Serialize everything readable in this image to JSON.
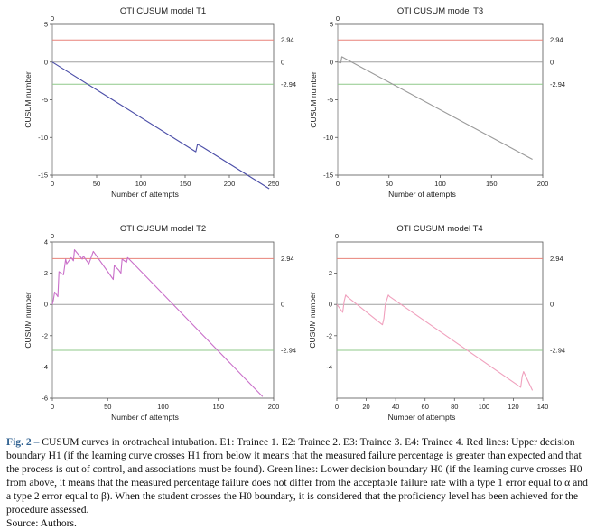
{
  "chart_data": [
    {
      "type": "line",
      "title": "OTI CUSUM model T1",
      "xlabel": "Number of attempts",
      "ylabel": "CUSUM number",
      "xlim": [
        0,
        250
      ],
      "ylim": [
        -15,
        5
      ],
      "xticks": [
        "0",
        "50",
        "100",
        "150",
        "200",
        "250"
      ],
      "yticks": [
        "5",
        "0",
        "-5",
        "-10",
        "-15"
      ],
      "top_label": "0",
      "color": "#4b4ea8",
      "series": [
        {
          "x": [
            0,
            162,
            164,
            170,
            245
          ],
          "y": [
            0,
            -11.9,
            -10.9,
            -11.3,
            -16.8
          ]
        }
      ],
      "reference_lines": [
        {
          "value": 2.94,
          "label": "2.94",
          "color": "#e8827a"
        },
        {
          "value": 0,
          "label": "0",
          "color": "#a0a0a0"
        },
        {
          "value": -2.94,
          "label": "-2.94",
          "color": "#8fc98a"
        }
      ]
    },
    {
      "type": "line",
      "title": "OTI CUSUM model T3",
      "xlabel": "Number of attempts",
      "ylabel": "CUSUM number",
      "xlim": [
        0,
        200
      ],
      "ylim": [
        -15,
        5
      ],
      "xticks": [
        "0",
        "50",
        "100",
        "150",
        "200"
      ],
      "yticks": [
        "5",
        "0",
        "-5",
        "-10",
        "-15"
      ],
      "top_label": "0",
      "color": "#9a9a9a",
      "series": [
        {
          "x": [
            0,
            3,
            4,
            190
          ],
          "y": [
            0,
            -0.1,
            0.7,
            -12.9
          ]
        }
      ],
      "reference_lines": [
        {
          "value": 2.94,
          "label": "2.94",
          "color": "#e8827a"
        },
        {
          "value": 0,
          "label": "0",
          "color": "#a0a0a0"
        },
        {
          "value": -2.94,
          "label": "-2.94",
          "color": "#8fc98a"
        }
      ]
    },
    {
      "type": "line",
      "title": "OTI CUSUM model T2",
      "xlabel": "Number of attempts",
      "ylabel": "CUSUM number",
      "xlim": [
        0,
        200
      ],
      "ylim": [
        -6,
        4
      ],
      "xticks": [
        "0",
        "50",
        "100",
        "150",
        "200"
      ],
      "yticks": [
        "4",
        "2",
        "0",
        "-2",
        "-4",
        "-6"
      ],
      "top_label": "0",
      "color": "#c96fc9",
      "series": [
        {
          "x": [
            0,
            1,
            2,
            5,
            6,
            10,
            12,
            13,
            17,
            19,
            20,
            27,
            28,
            33,
            37,
            38,
            55,
            56,
            60,
            62,
            63,
            67,
            68,
            190
          ],
          "y": [
            0,
            0.3,
            0.8,
            0.5,
            2.1,
            1.9,
            2.9,
            2.6,
            3.0,
            2.8,
            3.5,
            2.9,
            3.1,
            2.6,
            3.4,
            3.3,
            1.6,
            2.5,
            2.2,
            2.0,
            2.9,
            2.7,
            3.0,
            -5.9
          ]
        }
      ],
      "reference_lines": [
        {
          "value": 2.94,
          "label": "2.94",
          "color": "#e8827a"
        },
        {
          "value": 0,
          "label": "0",
          "color": "#a0a0a0"
        },
        {
          "value": -2.94,
          "label": "-2.94",
          "color": "#8fc98a"
        }
      ]
    },
    {
      "type": "line",
      "title": "OTI CUSUM model T4",
      "xlabel": "Number of attempts",
      "ylabel": "CUSUM number",
      "xlim": [
        0,
        140
      ],
      "ylim": [
        -6,
        4
      ],
      "xticks": [
        "0",
        "20",
        "40",
        "60",
        "80",
        "100",
        "120",
        "140"
      ],
      "yticks": [
        "2",
        "0",
        "-2",
        "-4"
      ],
      "top_label": "0",
      "color": "#f0a0bd",
      "series": [
        {
          "x": [
            0,
            4,
            5,
            6,
            7,
            31,
            32,
            33,
            35,
            36,
            125,
            126,
            127,
            133
          ],
          "y": [
            0,
            -0.5,
            0.2,
            0.6,
            0.5,
            -1.3,
            -0.9,
            0.0,
            0.6,
            0.5,
            -5.3,
            -4.6,
            -4.3,
            -5.5
          ]
        }
      ],
      "reference_lines": [
        {
          "value": 2.94,
          "label": "2.94",
          "color": "#e8827a"
        },
        {
          "value": 0,
          "label": "0",
          "color": "#a0a0a0"
        },
        {
          "value": -2.94,
          "label": "-2.94",
          "color": "#8fc98a"
        }
      ]
    }
  ],
  "caption": {
    "label": "Fig. 2 –",
    "text": " CUSUM curves in orotracheal intubation. E1: Trainee 1. E2: Trainee 2. E3: Trainee 3. E4: Trainee 4. Red lines: Upper decision boundary H1 (if the learning curve crosses H1 from below it means that the measured failure percentage is greater than expected and that the process is out of control, and associations must be found). Green lines: Lower decision boundary H0 (if the learning curve crosses H0 from above, it means that the measured percentage failure does not differ from the acceptable failure rate with a type 1 error equal to α and a type 2 error equal to β). When the student crosses the H0 boundary, it is considered that the proficiency level has been achieved for the procedure assessed.",
    "source": "Source: Authors."
  }
}
